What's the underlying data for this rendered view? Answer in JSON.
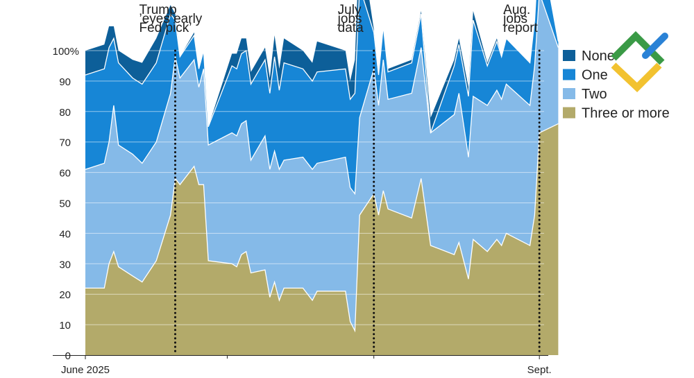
{
  "chart_data": {
    "type": "area",
    "stacked": true,
    "normalized_percent": true,
    "y_axis": {
      "range": [
        0,
        100
      ],
      "ticks": [
        0,
        10,
        20,
        30,
        40,
        50,
        60,
        70,
        80,
        90,
        100
      ],
      "tick_labels": [
        "0",
        "10",
        "20",
        "30",
        "40",
        "50",
        "60",
        "70",
        "80",
        "90",
        "100%"
      ]
    },
    "x_axis": {
      "range": [
        "2025-06-01",
        "2025-09-06"
      ],
      "labels": [
        {
          "date": "2025-06-01",
          "text": "June 2025"
        },
        {
          "date": "2025-09-05",
          "text": "Sept."
        }
      ],
      "minor_ticks": [
        "2025-07-01",
        "2025-08-01"
      ]
    },
    "grid": true,
    "legend_position": "right",
    "annotations": [
      {
        "date": "2025-06-20",
        "lines": [
          "Trump",
          "’eyes early",
          "Fed pick’"
        ]
      },
      {
        "date": "2025-08-01",
        "lines": [
          "July",
          "jobs",
          "data"
        ]
      },
      {
        "date": "2025-09-05",
        "lines": [
          "Aug.",
          "jobs",
          "report"
        ]
      }
    ],
    "series": [
      {
        "name": "Three or more",
        "color": "#b3aa6a",
        "points": [
          [
            "2025-06-01",
            22
          ],
          [
            "2025-06-05",
            22
          ],
          [
            "2025-06-06",
            30
          ],
          [
            "2025-06-07",
            34
          ],
          [
            "2025-06-08",
            29
          ],
          [
            "2025-06-11",
            26
          ],
          [
            "2025-06-13",
            24
          ],
          [
            "2025-06-16",
            31
          ],
          [
            "2025-06-19",
            46
          ],
          [
            "2025-06-20",
            58
          ],
          [
            "2025-06-21",
            56
          ],
          [
            "2025-06-24",
            62
          ],
          [
            "2025-06-25",
            56
          ],
          [
            "2025-06-26",
            56
          ],
          [
            "2025-06-27",
            31
          ],
          [
            "2025-07-02",
            30
          ],
          [
            "2025-07-03",
            29
          ],
          [
            "2025-07-04",
            33
          ],
          [
            "2025-07-05",
            34
          ],
          [
            "2025-07-06",
            27
          ],
          [
            "2025-07-09",
            28
          ],
          [
            "2025-07-10",
            19
          ],
          [
            "2025-07-11",
            24
          ],
          [
            "2025-07-12",
            18
          ],
          [
            "2025-07-13",
            22
          ],
          [
            "2025-07-17",
            22
          ],
          [
            "2025-07-19",
            18
          ],
          [
            "2025-07-20",
            21
          ],
          [
            "2025-07-26",
            21
          ],
          [
            "2025-07-27",
            11
          ],
          [
            "2025-07-28",
            8
          ],
          [
            "2025-07-29",
            46
          ],
          [
            "2025-08-01",
            53
          ],
          [
            "2025-08-02",
            46
          ],
          [
            "2025-08-03",
            54
          ],
          [
            "2025-08-04",
            48
          ],
          [
            "2025-08-09",
            45
          ],
          [
            "2025-08-11",
            58
          ],
          [
            "2025-08-13",
            36
          ],
          [
            "2025-08-18",
            33
          ],
          [
            "2025-08-19",
            37
          ],
          [
            "2025-08-21",
            25
          ],
          [
            "2025-08-22",
            38
          ],
          [
            "2025-08-25",
            34
          ],
          [
            "2025-08-27",
            38
          ],
          [
            "2025-08-28",
            36
          ],
          [
            "2025-08-29",
            40
          ],
          [
            "2025-09-03",
            36
          ],
          [
            "2025-09-04",
            46
          ],
          [
            "2025-09-05",
            73
          ],
          [
            "2025-09-09",
            76
          ]
        ]
      },
      {
        "name": "Two",
        "color": "#85bae8",
        "points": [
          [
            "2025-06-01",
            39
          ],
          [
            "2025-06-04",
            41
          ],
          [
            "2025-06-05",
            40
          ],
          [
            "2025-06-06",
            48
          ],
          [
            "2025-06-07",
            40
          ],
          [
            "2025-06-08",
            40
          ],
          [
            "2025-06-11",
            39
          ],
          [
            "2025-06-13",
            39
          ],
          [
            "2025-06-16",
            40
          ],
          [
            "2025-06-19",
            40
          ],
          [
            "2025-06-20",
            35
          ],
          [
            "2025-06-21",
            35
          ],
          [
            "2025-06-24",
            32
          ],
          [
            "2025-06-25",
            38
          ],
          [
            "2025-06-26",
            38
          ],
          [
            "2025-06-27",
            43
          ],
          [
            "2025-07-02",
            43
          ],
          [
            "2025-07-03",
            43
          ],
          [
            "2025-07-04",
            43
          ],
          [
            "2025-07-05",
            37
          ],
          [
            "2025-07-06",
            44
          ],
          [
            "2025-07-09",
            42
          ],
          [
            "2025-07-10",
            43
          ],
          [
            "2025-07-11",
            43
          ],
          [
            "2025-07-12",
            42
          ],
          [
            "2025-07-13",
            43
          ],
          [
            "2025-07-17",
            43
          ],
          [
            "2025-07-19",
            42
          ],
          [
            "2025-07-20",
            44
          ],
          [
            "2025-07-26",
            44
          ],
          [
            "2025-07-27",
            45
          ],
          [
            "2025-07-28",
            32
          ],
          [
            "2025-07-29",
            41
          ],
          [
            "2025-08-01",
            36
          ],
          [
            "2025-08-02",
            43
          ],
          [
            "2025-08-03",
            36
          ],
          [
            "2025-08-04",
            41
          ],
          [
            "2025-08-09",
            43
          ],
          [
            "2025-08-11",
            37
          ],
          [
            "2025-08-13",
            46
          ],
          [
            "2025-08-18",
            49
          ],
          [
            "2025-08-19",
            40
          ],
          [
            "2025-08-21",
            47
          ],
          [
            "2025-08-22",
            48
          ],
          [
            "2025-08-25",
            49
          ],
          [
            "2025-08-27",
            48
          ],
          [
            "2025-08-28",
            49
          ],
          [
            "2025-08-29",
            46
          ],
          [
            "2025-09-03",
            49
          ],
          [
            "2025-09-04",
            46
          ],
          [
            "2025-09-05",
            25
          ],
          [
            "2025-09-09",
            23
          ]
        ]
      },
      {
        "name": "One",
        "color": "#1786d6",
        "points": [
          [
            "2025-06-01",
            31
          ],
          [
            "2025-06-04",
            31
          ],
          [
            "2025-06-05",
            31
          ],
          [
            "2025-06-06",
            22
          ],
          [
            "2025-06-07",
            27
          ],
          [
            "2025-06-08",
            25
          ],
          [
            "2025-06-11",
            26
          ],
          [
            "2025-06-13",
            26
          ],
          [
            "2025-06-16",
            26
          ],
          [
            "2025-06-19",
            12
          ],
          [
            "2025-06-20",
            7
          ],
          [
            "2025-06-21",
            8
          ],
          [
            "2025-06-24",
            6
          ],
          [
            "2025-06-25",
            6
          ],
          [
            "2025-06-26",
            6
          ],
          [
            "2025-06-27",
            22
          ],
          [
            "2025-07-02",
            22
          ],
          [
            "2025-07-03",
            23
          ],
          [
            "2025-07-04",
            23
          ],
          [
            "2025-07-05",
            25
          ],
          [
            "2025-07-06",
            25
          ],
          [
            "2025-07-09",
            25
          ],
          [
            "2025-07-10",
            31
          ],
          [
            "2025-07-11",
            26
          ],
          [
            "2025-07-12",
            32
          ],
          [
            "2025-07-13",
            29
          ],
          [
            "2025-07-17",
            29
          ],
          [
            "2025-07-19",
            30
          ],
          [
            "2025-07-20",
            29
          ],
          [
            "2025-07-26",
            29
          ],
          [
            "2025-07-27",
            33
          ],
          [
            "2025-07-28",
            43
          ],
          [
            "2025-07-29",
            12
          ],
          [
            "2025-08-01",
            10
          ],
          [
            "2025-08-02",
            11
          ],
          [
            "2025-08-03",
            9
          ],
          [
            "2025-08-04",
            10
          ],
          [
            "2025-08-09",
            11
          ],
          [
            "2025-08-11",
            0
          ],
          [
            "2025-08-13",
            16
          ],
          [
            "2025-08-18",
            16
          ],
          [
            "2025-08-19",
            20
          ],
          [
            "2025-08-21",
            25
          ],
          [
            "2025-08-22",
            13
          ],
          [
            "2025-08-25",
            16
          ],
          [
            "2025-08-27",
            14
          ],
          [
            "2025-08-28",
            15
          ],
          [
            "2025-08-29",
            14
          ],
          [
            "2025-09-03",
            15
          ],
          [
            "2025-09-04",
            18
          ],
          [
            "2025-09-05",
            2
          ],
          [
            "2025-09-09",
            1
          ]
        ]
      },
      {
        "name": "None",
        "color": "#0d5f99",
        "points": [
          [
            "2025-06-01",
            8
          ],
          [
            "2025-06-04",
            8
          ],
          [
            "2025-06-05",
            7
          ],
          [
            "2025-06-06",
            4
          ],
          [
            "2025-06-07",
            4
          ],
          [
            "2025-06-08",
            6
          ],
          [
            "2025-06-11",
            7
          ],
          [
            "2025-06-13",
            8
          ],
          [
            "2025-06-16",
            3
          ],
          [
            "2025-06-19",
            2
          ],
          [
            "2025-06-20",
            0
          ],
          [
            "2025-06-21",
            1
          ],
          [
            "2025-06-24",
            0
          ],
          [
            "2025-06-25",
            0
          ],
          [
            "2025-06-26",
            0
          ],
          [
            "2025-06-27",
            4
          ],
          [
            "2025-07-02",
            5
          ],
          [
            "2025-07-03",
            5
          ],
          [
            "2025-07-04",
            4
          ],
          [
            "2025-07-05",
            4
          ],
          [
            "2025-07-06",
            4
          ],
          [
            "2025-07-09",
            5
          ],
          [
            "2025-07-10",
            7
          ],
          [
            "2025-07-11",
            7
          ],
          [
            "2025-07-12",
            8
          ],
          [
            "2025-07-13",
            6
          ],
          [
            "2025-07-17",
            6
          ],
          [
            "2025-07-19",
            10
          ],
          [
            "2025-07-20",
            6
          ],
          [
            "2025-07-26",
            6
          ],
          [
            "2025-07-27",
            11
          ],
          [
            "2025-07-28",
            17
          ],
          [
            "2025-07-29",
            1
          ],
          [
            "2025-08-01",
            1
          ],
          [
            "2025-08-02",
            0
          ],
          [
            "2025-08-03",
            1
          ],
          [
            "2025-08-04",
            1
          ],
          [
            "2025-08-09",
            1
          ],
          [
            "2025-08-11",
            5
          ],
          [
            "2025-08-13",
            2
          ],
          [
            "2025-08-18",
            2
          ],
          [
            "2025-08-19",
            3
          ],
          [
            "2025-08-21",
            3
          ],
          [
            "2025-08-22",
            1
          ],
          [
            "2025-08-25",
            1
          ],
          [
            "2025-08-27",
            0
          ],
          [
            "2025-08-28",
            0
          ],
          [
            "2025-08-29",
            0
          ],
          [
            "2025-09-03",
            0
          ],
          [
            "2025-09-04",
            0
          ],
          [
            "2025-09-05",
            0
          ],
          [
            "2025-09-09",
            0
          ]
        ]
      }
    ]
  },
  "logo": {
    "name": "brand-logo",
    "colors": [
      "#3a9a46",
      "#f2c230",
      "#2a82d6"
    ]
  }
}
